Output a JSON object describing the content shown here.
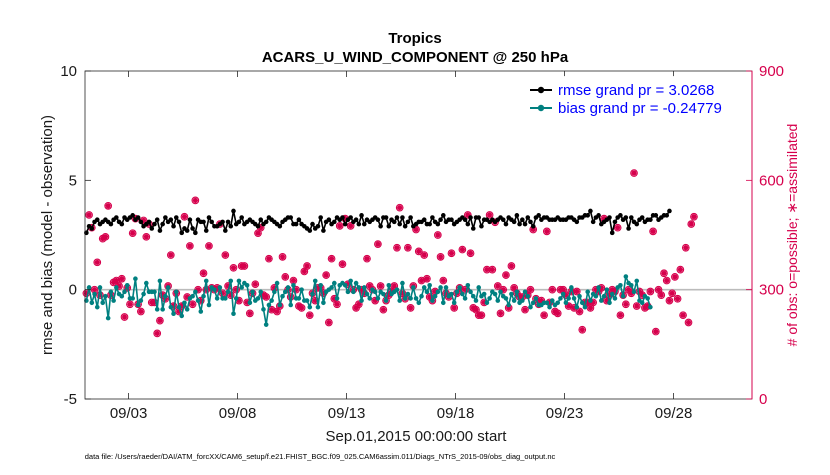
{
  "chart_data": {
    "type": "line",
    "title_line1": "Tropics",
    "title_line2": "ACARS_U_WIND_COMPONENT @ 250 hPa",
    "xlabel": "Sep.01,2015 00:00:00 start",
    "ylabel": "rmse and bias (model - observation)",
    "ylabel_right": "# of obs: o=possible; ∗=assimilated",
    "footnote": "data file: /Users/raeder/DAI/ATM_forcXX/CAM6_setup/f.e21.FHIST_BGC.f09_025.CAM6assim.011/Diags_NTrS_2015-09/obs_diag_output.nc",
    "xlim": [
      1.0,
      31.6
    ],
    "ylim": [
      -5,
      10
    ],
    "ylim_right": [
      0,
      900
    ],
    "x_ticks": [
      3,
      8,
      13,
      18,
      23,
      28
    ],
    "x_tick_labels": [
      "09/03",
      "09/08",
      "09/13",
      "09/18",
      "09/23",
      "09/28"
    ],
    "y_ticks": [
      -5,
      0,
      5,
      10
    ],
    "y_tick_labels": [
      "-5",
      "0",
      "5",
      "10"
    ],
    "y_ticks_right": [
      0,
      300,
      600,
      900
    ],
    "y_tick_labels_right": [
      "0",
      "300",
      "600",
      "900"
    ],
    "zero_line": 0,
    "legend": [
      {
        "name": "rmse",
        "label": "rmse grand pr = 3.0268",
        "color": "#000000"
      },
      {
        "name": "bias",
        "label": "bias grand pr = -0.24779",
        "color": "#008080"
      }
    ],
    "colors": {
      "rmse": "#000000",
      "bias": "#008080",
      "obs": "#d6004c",
      "zero": "#bbbbbb"
    },
    "rmse": [
      2.6,
      2.9,
      2.8,
      3.1,
      3.2,
      3.0,
      3.1,
      3.2,
      3.1,
      3.0,
      3.2,
      3.3,
      3.1,
      3.0,
      3.3,
      3.2,
      3.3,
      3.4,
      3.2,
      3.3,
      3.1,
      2.9,
      3.0,
      3.1,
      2.8,
      3.0,
      3.2,
      2.7,
      3.0,
      3.3,
      3.1,
      3.2,
      2.9,
      3.3,
      3.1,
      2.6,
      2.8,
      2.7,
      3.2,
      2.8,
      2.6,
      3.2,
      3.1,
      3.1,
      2.7,
      3.3,
      3.1,
      2.9,
      2.9,
      3.0,
      3.1,
      2.7,
      3.1,
      2.9,
      3.6,
      3.0,
      3.1,
      3.3,
      3.0,
      3.1,
      3.2,
      3.1,
      3.0,
      2.9,
      3.2,
      3.0,
      3.1,
      3.3,
      3.2,
      3.1,
      3.0,
      2.9,
      3.1,
      3.2,
      3.3,
      3.3,
      3.0,
      3.0,
      3.2,
      3.0,
      2.9,
      2.8,
      2.7,
      3.0,
      2.8,
      2.9,
      3.3,
      2.7,
      3.1,
      3.2,
      3.0,
      3.1,
      3.3,
      3.2,
      3.3,
      3.0,
      3.2,
      3.3,
      3.1,
      3.2,
      3.0,
      3.4,
      3.0,
      3.2,
      3.1,
      3.2,
      3.3,
      3.2,
      2.9,
      3.3,
      3.3,
      2.9,
      3.2,
      3.1,
      3.3,
      3.0,
      3.3,
      2.9,
      3.1,
      3.3,
      2.9,
      3.0,
      3.1,
      3.1,
      3.2,
      3.0,
      3.0,
      3.3,
      3.1,
      3.0,
      3.2,
      3.4,
      3.1,
      3.2,
      3.2,
      3.0,
      3.1,
      3.2,
      3.3,
      3.2,
      3.0,
      3.3,
      2.8,
      3.3,
      3.3,
      2.9,
      3.2,
      3.2,
      3.1,
      3.2,
      3.1,
      3.2,
      3.3,
      3.2,
      3.0,
      3.3,
      3.2,
      3.1,
      3.4,
      3.0,
      3.2,
      3.0,
      3.3,
      3.1,
      2.9,
      3.3,
      3.4,
      3.2,
      3.3,
      3.3,
      3.2,
      3.2,
      3.2,
      3.3,
      3.2,
      3.2,
      3.2,
      3.3,
      3.3,
      3.2,
      3.1,
      3.3,
      3.3,
      3.4,
      3.4,
      3.6,
      3.1,
      3.3,
      3.4,
      3.0,
      3.1,
      3.2,
      3.3,
      2.6,
      3.1,
      3.3,
      3.4,
      3.2,
      3.3,
      2.8,
      3.3,
      3.1,
      3.0,
      3.2,
      3.3,
      3.1,
      3.2,
      3.2,
      3.4,
      3.4,
      3.2,
      3.3,
      3.4,
      3.4,
      3.6
    ],
    "bias": [
      -0.5,
      0.1,
      -0.6,
      -0.2,
      -0.8,
      0.1,
      -0.6,
      -0.3,
      -1.3,
      -0.1,
      -0.5,
      0.1,
      -0.2,
      -0.3,
      -0.1,
      0.2,
      -0.4,
      -0.4,
      0.5,
      -0.7,
      -0.5,
      -0.2,
      0.3,
      -0.1,
      -0.1,
      -0.1,
      -0.9,
      0.4,
      -0.9,
      -0.3,
      0.1,
      -0.8,
      -1.1,
      -0.1,
      -0.8,
      -1.2,
      -0.6,
      -0.9,
      -0.4,
      -0.3,
      -0.1,
      -0.5,
      -1.0,
      -0.3,
      0.4,
      -0.7,
      0.1,
      0.0,
      -0.4,
      0.1,
      -0.4,
      -0.4,
      -0.1,
      0.4,
      -1.1,
      -0.4,
      0.4,
      0.1,
      0.3,
      0.2,
      -0.6,
      -0.1,
      -0.5,
      -0.4,
      -0.1,
      -0.9,
      -1.6,
      -0.7,
      -0.5,
      -0.1,
      0.3,
      -0.7,
      -0.3,
      -0.1,
      0.1,
      -0.7,
      0.2,
      -0.4,
      -0.4,
      0.0,
      -0.5,
      -0.5,
      -0.8,
      -0.2,
      0.4,
      -0.8,
      0.2,
      -0.6,
      -0.1,
      0.0,
      0.1,
      0.3,
      -0.4,
      0.2,
      0.3,
      0.2,
      -0.1,
      0.4,
      -0.1,
      0.3,
      0.1,
      -0.5,
      0.1,
      -0.2,
      -0.4,
      0.0,
      -0.1,
      -0.4,
      -0.1,
      -0.2,
      -0.5,
      0.2,
      -0.2,
      -0.1,
      0.0,
      -0.5,
      0.3,
      -0.4,
      -0.2,
      -0.4,
      0.1,
      -0.4,
      -0.6,
      -0.3,
      0.1,
      -0.1,
      0.2,
      -0.5,
      -0.3,
      -0.1,
      0.1,
      -0.6,
      0.1,
      -0.3,
      -0.2,
      -0.6,
      -0.1,
      0.1,
      -0.2,
      -0.4,
      0.2,
      -0.1,
      -0.3,
      -0.5,
      0.1,
      -0.3,
      -0.2,
      -0.6,
      -0.4,
      -0.1,
      -0.2,
      -0.5,
      -0.1,
      -0.3,
      -0.4,
      -0.7,
      -0.2,
      -0.5,
      -0.1,
      -0.6,
      -0.5,
      -0.1,
      -0.3,
      -0.8,
      -0.6,
      -0.4,
      -0.7,
      -0.7,
      -0.6,
      -0.6,
      -0.8,
      -0.5,
      -0.7,
      -0.6,
      -0.4,
      -0.2,
      -0.6,
      -0.4,
      0.1,
      -0.4,
      -0.8,
      -0.3,
      -0.6,
      -0.8,
      -0.1,
      -0.5,
      -0.2,
      -0.3,
      0.1,
      -0.5,
      -0.3,
      0.0,
      -0.6,
      -0.2,
      -0.4,
      0.1,
      0.2,
      -0.3,
      0.6,
      0.3,
      0.2,
      -0.1,
      0.4,
      -0.5,
      -0.6,
      -0.3,
      -0.4,
      -0.8
    ],
    "obs_possible": [
      290,
      505,
      470,
      300,
      375,
      285,
      440,
      445,
      530,
      285,
      320,
      325,
      310,
      330,
      225,
      305,
      260,
      455,
      495,
      260,
      240,
      490,
      445,
      480,
      265,
      265,
      180,
      215,
      285,
      275,
      310,
      395,
      255,
      290,
      240,
      255,
      500,
      280,
      420,
      260,
      545,
      300,
      270,
      345,
      300,
      420,
      305,
      300,
      305,
      480,
      290,
      395,
      310,
      285,
      360,
      300,
      270,
      365,
      365,
      265,
      235,
      290,
      315,
      455,
      470,
      285,
      280,
      385,
      245,
      305,
      240,
      255,
      390,
      335,
      300,
      280,
      325,
      300,
      255,
      250,
      350,
      365,
      230,
      290,
      270,
      305,
      305,
      290,
      340,
      210,
      385,
      275,
      260,
      475,
      370,
      495,
      315,
      475,
      300,
      250,
      260,
      300,
      290,
      385,
      310,
      300,
      270,
      425,
      310,
      245,
      270,
      285,
      295,
      310,
      415,
      525,
      290,
      275,
      415,
      250,
      310,
      465,
      405,
      325,
      395,
      330,
      280,
      270,
      295,
      450,
      390,
      325,
      290,
      280,
      400,
      250,
      290,
      305,
      410,
      300,
      505,
      400,
      250,
      245,
      230,
      230,
      265,
      355,
      505,
      355,
      485,
      310,
      235,
      300,
      340,
      250,
      365,
      305,
      290,
      280,
      280,
      245,
      285,
      300,
      465,
      275,
      260,
      270,
      230,
      460,
      265,
      300,
      240,
      235,
      300,
      300,
      285,
      255,
      295,
      250,
      295,
      240,
      190,
      265,
      265,
      250,
      265,
      300,
      295,
      305,
      495,
      270,
      285,
      300,
      295,
      470,
      230,
      285,
      260,
      300,
      290,
      620,
      255,
      295,
      285,
      250,
      255,
      295,
      460,
      185,
      300,
      285,
      345,
      325,
      270,
      290,
      335,
      275,
      355,
      230,
      415,
      210,
      480,
      500
    ]
  }
}
